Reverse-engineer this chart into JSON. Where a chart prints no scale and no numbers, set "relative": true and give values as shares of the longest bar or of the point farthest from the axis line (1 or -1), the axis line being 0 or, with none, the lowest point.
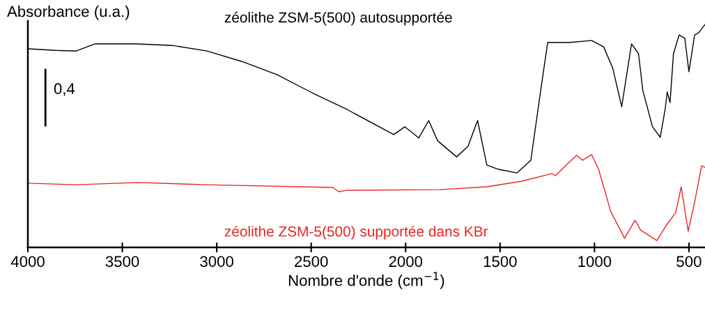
{
  "chart_data": {
    "type": "line",
    "relative": true,
    "xlabel": "Nombre d'onde (cm$^{−1}$)",
    "ylabel": "Absorbance (u.a.)",
    "xlim": [
      4000,
      415
    ],
    "xticks": [
      4000,
      3500,
      3000,
      2500,
      2000,
      1500,
      1000,
      500
    ],
    "grid": false,
    "legend": false,
    "marker": "none",
    "line_style": "solid",
    "annotations": [
      "0,4"
    ],
    "series": [
      {
        "color": "#000000",
        "x": [
          3907,
          3907
        ],
        "values": [
          0.547,
          0.797
        ]
      },
      {
        "name": "zéolithe ZSM-5(500) autosupportée",
        "color": "#000000",
        "x": [
          4000,
          3856,
          3744,
          3644,
          3422,
          3237,
          3052,
          2867,
          2681,
          2496,
          2311,
          2063,
          2004,
          1930,
          1878,
          1830,
          1730,
          1670,
          1619,
          1570,
          1507,
          1411,
          1337,
          1285,
          1248,
          1137,
          1015,
          952,
          904,
          856,
          804,
          767,
          744,
          693,
          652,
          626,
          615,
          600,
          582,
          552,
          522,
          500,
          470,
          448,
          415
        ],
        "values": [
          0.891,
          0.884,
          0.881,
          0.913,
          0.913,
          0.906,
          0.881,
          0.834,
          0.775,
          0.694,
          0.619,
          0.506,
          0.541,
          0.491,
          0.569,
          0.478,
          0.406,
          0.453,
          0.569,
          0.369,
          0.35,
          0.334,
          0.391,
          0.703,
          0.919,
          0.919,
          0.928,
          0.9,
          0.806,
          0.631,
          0.913,
          0.869,
          0.703,
          0.541,
          0.494,
          0.619,
          0.697,
          0.65,
          0.869,
          0.953,
          0.938,
          0.788,
          0.953,
          0.963,
          1.0
        ]
      },
      {
        "name": "zéolithe ZSM-5(500) supportée dans KBr",
        "color": "#ee2222",
        "x": [
          4000,
          3744,
          3422,
          3052,
          2385,
          2356,
          2311,
          1819,
          1570,
          1385,
          1226,
          1207,
          1096,
          1063,
          1015,
          978,
          915,
          841,
          785,
          756,
          670,
          619,
          570,
          541,
          504,
          470,
          433,
          415
        ],
        "values": [
          0.288,
          0.281,
          0.291,
          0.281,
          0.269,
          0.25,
          0.256,
          0.259,
          0.272,
          0.297,
          0.331,
          0.322,
          0.413,
          0.391,
          0.416,
          0.35,
          0.163,
          0.041,
          0.122,
          0.078,
          0.031,
          0.1,
          0.156,
          0.272,
          0.072,
          0.203,
          0.366,
          0.359
        ]
      }
    ]
  }
}
